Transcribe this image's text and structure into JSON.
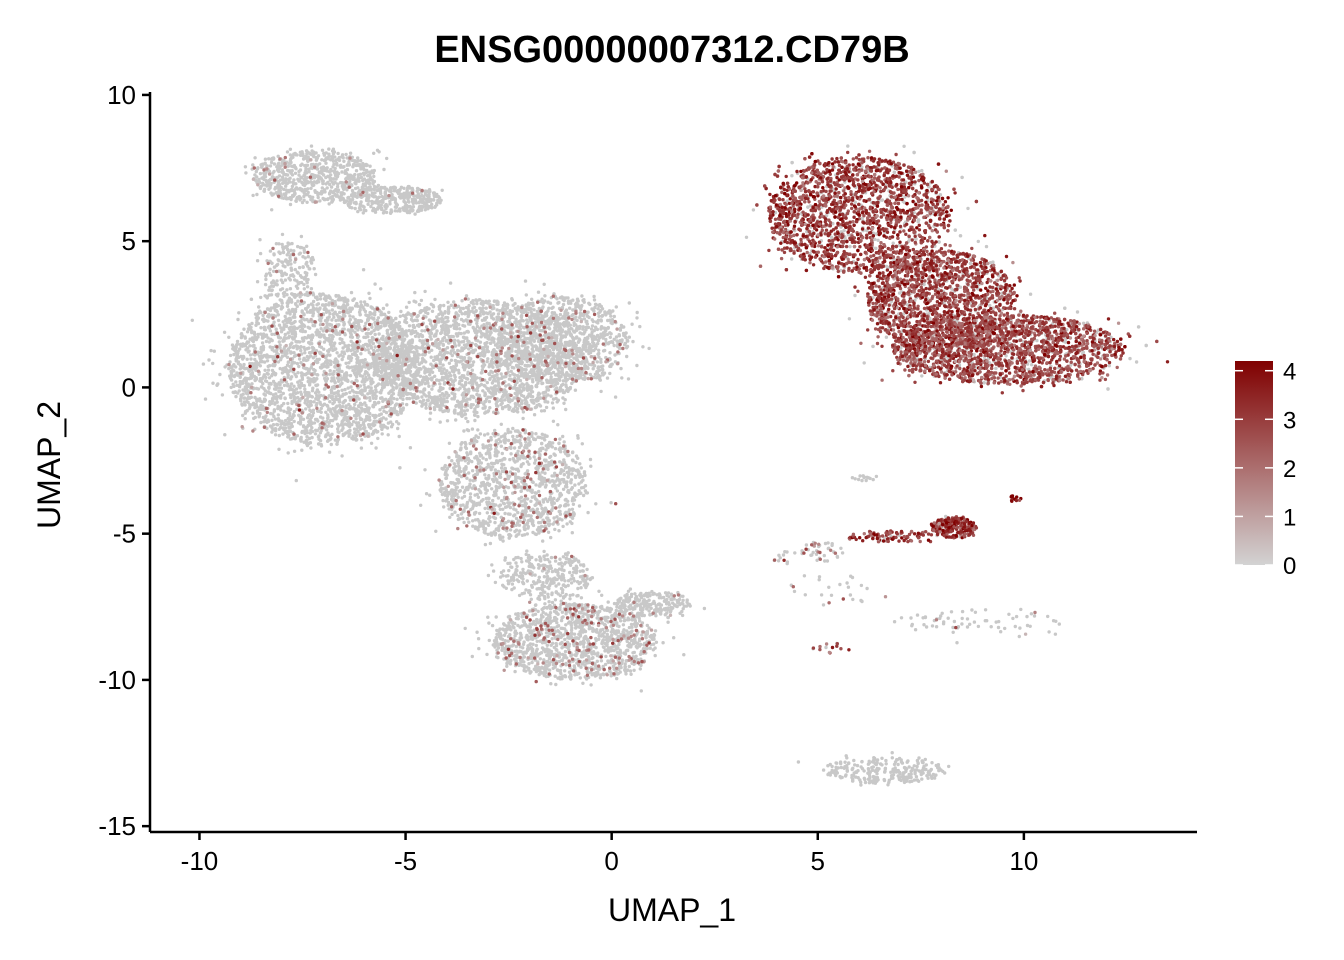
{
  "chart_data": {
    "type": "scatter",
    "title": "ENSG00000007312.CD79B",
    "xlabel": "UMAP_1",
    "ylabel": "UMAP_2",
    "xlim": [
      -11.2,
      14.2
    ],
    "ylim": [
      -15.2,
      10.1
    ],
    "x_ticks": [
      -10,
      -5,
      0,
      5,
      10
    ],
    "x_tick_labels": [
      "-10",
      "-5",
      "0",
      "5",
      "10"
    ],
    "y_ticks": [
      10,
      5,
      0,
      -5,
      -10,
      -15
    ],
    "y_tick_labels": [
      "10",
      "5",
      "0",
      "-5",
      "-10",
      "-15"
    ],
    "grid": false,
    "color_scale": {
      "min": 0,
      "max": 4.2,
      "low_color": "#d3d3d3",
      "high_color": "#800000",
      "ticks": [
        0,
        1,
        2,
        3,
        4
      ],
      "tick_labels": [
        "0",
        "1",
        "2",
        "3",
        "4"
      ],
      "placement": "right"
    },
    "point_color_default": "#c8c8c8",
    "clusters": [
      {
        "cx": -7.2,
        "cy": 7.2,
        "rx": 1.5,
        "ry": 0.9,
        "n": 700,
        "expr_frac": 0.02,
        "expr_mean": 1.5
      },
      {
        "cx": -5.3,
        "cy": 6.4,
        "rx": 1.2,
        "ry": 0.45,
        "n": 350,
        "expr_frac": 0.02,
        "expr_mean": 1.5
      },
      {
        "cx": -7.8,
        "cy": 4.0,
        "rx": 0.6,
        "ry": 1.1,
        "n": 180,
        "expr_frac": 0.03,
        "expr_mean": 1.5
      },
      {
        "cx": -7.0,
        "cy": 0.6,
        "rx": 2.3,
        "ry": 2.6,
        "n": 2600,
        "expr_frac": 0.04,
        "expr_mean": 1.8
      },
      {
        "cx": -3.2,
        "cy": 1.0,
        "rx": 2.6,
        "ry": 2.0,
        "n": 2200,
        "expr_frac": 0.05,
        "expr_mean": 1.8
      },
      {
        "cx": -1.2,
        "cy": 1.6,
        "rx": 1.6,
        "ry": 1.5,
        "n": 900,
        "expr_frac": 0.06,
        "expr_mean": 1.8
      },
      {
        "cx": -2.4,
        "cy": -3.3,
        "rx": 1.8,
        "ry": 1.9,
        "n": 1200,
        "expr_frac": 0.07,
        "expr_mean": 1.8
      },
      {
        "cx": -1.6,
        "cy": -6.5,
        "rx": 1.1,
        "ry": 0.9,
        "n": 300,
        "expr_frac": 0.03,
        "expr_mean": 1.6
      },
      {
        "cx": -0.9,
        "cy": -8.7,
        "rx": 2.0,
        "ry": 1.3,
        "n": 1300,
        "expr_frac": 0.1,
        "expr_mean": 1.9
      },
      {
        "cx": 1.0,
        "cy": -7.4,
        "rx": 0.9,
        "ry": 0.45,
        "n": 220,
        "expr_frac": 0.04,
        "expr_mean": 1.6
      },
      {
        "cx": 6.0,
        "cy": 5.9,
        "rx": 2.2,
        "ry": 2.0,
        "n": 2600,
        "expr_frac": 0.85,
        "expr_mean": 3.0
      },
      {
        "cx": 8.0,
        "cy": 3.0,
        "rx": 1.8,
        "ry": 1.7,
        "n": 1500,
        "expr_frac": 0.85,
        "expr_mean": 2.9
      },
      {
        "cx": 9.6,
        "cy": 1.3,
        "rx": 2.8,
        "ry": 1.2,
        "n": 2400,
        "expr_frac": 0.85,
        "expr_mean": 2.8
      },
      {
        "cx": 8.3,
        "cy": -4.8,
        "rx": 0.55,
        "ry": 0.35,
        "n": 220,
        "expr_frac": 0.9,
        "expr_mean": 3.3
      },
      {
        "cx": 6.8,
        "cy": -5.1,
        "rx": 1.1,
        "ry": 0.2,
        "n": 90,
        "expr_frac": 0.85,
        "expr_mean": 3.1
      },
      {
        "cx": 9.8,
        "cy": -3.8,
        "rx": 0.15,
        "ry": 0.12,
        "n": 12,
        "expr_frac": 1.0,
        "expr_mean": 3.9
      },
      {
        "cx": 6.2,
        "cy": -3.1,
        "rx": 0.3,
        "ry": 0.1,
        "n": 14,
        "expr_frac": 0.0,
        "expr_mean": 0
      },
      {
        "cx": 5.1,
        "cy": -5.6,
        "rx": 0.5,
        "ry": 0.35,
        "n": 40,
        "expr_frac": 0.3,
        "expr_mean": 2.2
      },
      {
        "cx": 4.2,
        "cy": -5.8,
        "rx": 0.3,
        "ry": 0.25,
        "n": 12,
        "expr_frac": 0.2,
        "expr_mean": 2.0
      },
      {
        "cx": 9.0,
        "cy": -8.0,
        "rx": 2.2,
        "ry": 0.5,
        "n": 70,
        "expr_frac": 0.05,
        "expr_mean": 1.5
      },
      {
        "cx": 5.2,
        "cy": -8.9,
        "rx": 0.4,
        "ry": 0.2,
        "n": 14,
        "expr_frac": 0.8,
        "expr_mean": 2.8
      },
      {
        "cx": 6.6,
        "cy": -13.1,
        "rx": 1.5,
        "ry": 0.45,
        "n": 260,
        "expr_frac": 0.0,
        "expr_mean": 0
      },
      {
        "cx": 5.5,
        "cy": -6.9,
        "rx": 1.2,
        "ry": 0.5,
        "n": 25,
        "expr_frac": 0.15,
        "expr_mean": 1.8
      }
    ]
  }
}
